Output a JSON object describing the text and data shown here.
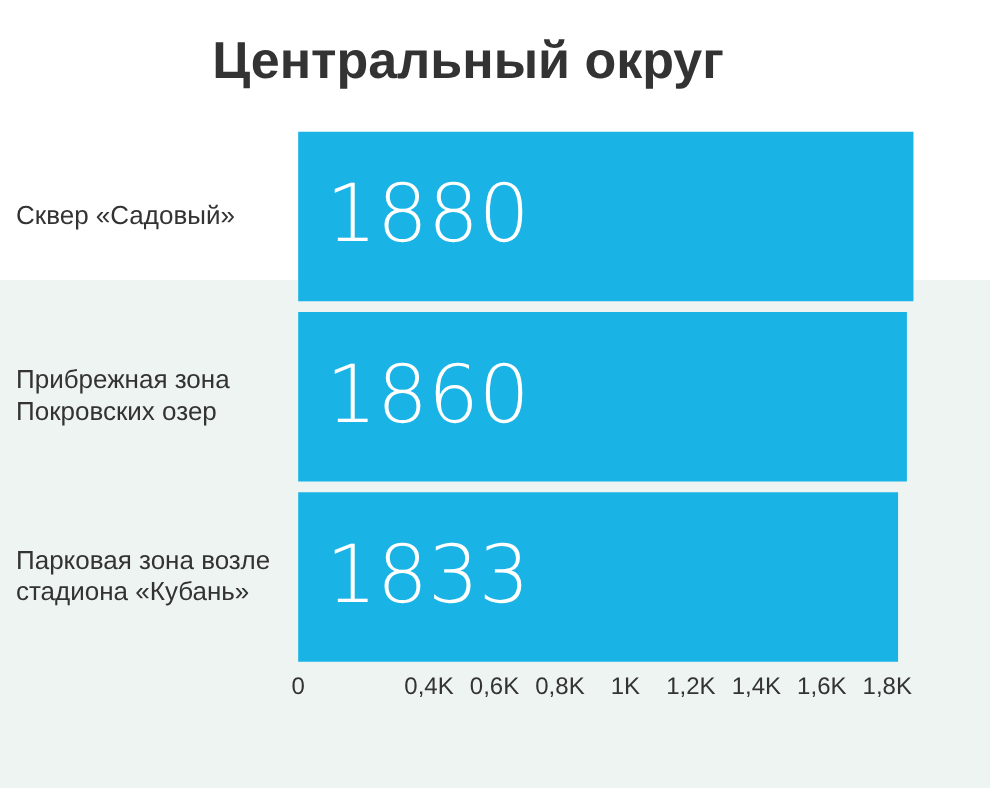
{
  "chart_data": {
    "type": "bar",
    "orientation": "horizontal",
    "title": "Центральный округ",
    "categories": [
      "Сквер «Садовый»",
      "Прибрежная зона Покровских озер",
      "Парковая зона возле стадиона «Кубань»"
    ],
    "values": [
      1880,
      1860,
      1833
    ],
    "color": "#1ab3e6",
    "data_labels": true,
    "grid": false,
    "legend": false,
    "xlim": [
      0,
      1900
    ],
    "xticks": [
      0,
      {
        "value": 400,
        "label": "0,4K"
      },
      {
        "value": 600,
        "label": "0,6K"
      },
      {
        "value": 800,
        "label": "0,8K"
      },
      {
        "value": 1000,
        "label": "1K"
      },
      {
        "value": 1200,
        "label": "1,2K"
      },
      {
        "value": 1400,
        "label": "1,4K"
      },
      {
        "value": 1600,
        "label": "1,6K"
      },
      {
        "value": 1800,
        "label": "1,8K"
      }
    ]
  }
}
